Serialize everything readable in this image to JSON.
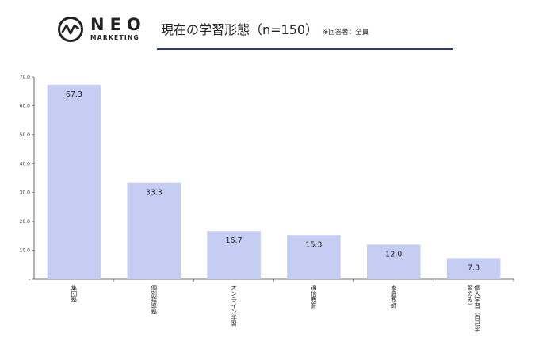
{
  "header": {
    "logo_text": "NEO",
    "logo_sub": "MARKETING",
    "title": "現在の学習形態（n=150）",
    "note": "※回答者：全員"
  },
  "colors": {
    "bar": "#c5cdf3",
    "accent": "#2d3a7c",
    "axis": "#444444"
  },
  "chart_data": {
    "type": "bar",
    "categories": [
      "集団塾",
      "個別指導塾",
      "オンライン学習",
      "通信教育",
      "家庭教師",
      "個人学習（自己学習のみ）"
    ],
    "category_lines": [
      [
        "集団塾"
      ],
      [
        "個別指導塾"
      ],
      [
        "オンライン学習"
      ],
      [
        "通信教育"
      ],
      [
        "家庭教師"
      ],
      [
        "個人学習（自己学",
        "習のみ）"
      ]
    ],
    "values": [
      67.3,
      33.3,
      16.7,
      15.3,
      12.0,
      7.3
    ],
    "value_labels": [
      "67.3",
      "33.3",
      "16.7",
      "15.3",
      "12.0",
      "7.3"
    ],
    "ylim": [
      0,
      70
    ],
    "yticks": [
      0,
      10,
      20,
      30,
      40,
      50,
      60,
      70
    ],
    "ytick_labels": [
      "-",
      "10.0",
      "20.0",
      "30.0",
      "40.0",
      "50.0",
      "60.0",
      "70.0"
    ],
    "grid": false,
    "legend": "none",
    "title": "現在の学習形態（n=150）",
    "xlabel": "",
    "ylabel": ""
  }
}
